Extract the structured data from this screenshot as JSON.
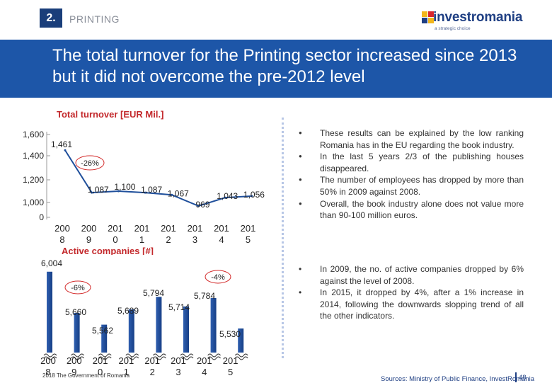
{
  "header": {
    "section_number": "2.",
    "section_name": "PRINTING",
    "logo_name": "investromania",
    "logo_tagline": "a strategic choice"
  },
  "banner": {
    "title": "The total turnover for the Printing sector increased since 2013 but it did not overcome the pre-2012 level"
  },
  "chart_data": [
    {
      "type": "line",
      "title": "Total turnover [EUR Mil.]",
      "categories": [
        "2008",
        "2009",
        "2010",
        "2011",
        "2012",
        "2013",
        "2014",
        "2015"
      ],
      "category_top": [
        "200",
        "200",
        "201",
        "201",
        "201",
        "201",
        "201",
        "201"
      ],
      "category_bottom": [
        "8",
        "9",
        "0",
        "1",
        "2",
        "3",
        "4",
        "5"
      ],
      "values": [
        1461,
        1087,
        1100,
        1087,
        1067,
        969,
        1043,
        1056
      ],
      "value_labels": [
        "1,461",
        "1,087",
        "1,100",
        "1,087",
        "1,067",
        "969",
        "1,043",
        "1,056"
      ],
      "y_ticks": [
        "1,600",
        "1,400",
        "1,200",
        "1,000",
        "0"
      ],
      "ylim": [
        0,
        1600
      ],
      "annotation": "-26%",
      "color": "#1f4f9b"
    },
    {
      "type": "bar",
      "title": "Active companies [#]",
      "categories": [
        "2008",
        "2009",
        "2010",
        "2011",
        "2012",
        "2013",
        "2014",
        "2015"
      ],
      "category_top": [
        "200",
        "200",
        "201",
        "201",
        "201",
        "201",
        "201",
        "201"
      ],
      "category_bottom": [
        "8",
        "9",
        "0",
        "1",
        "2",
        "3",
        "4",
        "5"
      ],
      "values": [
        6004,
        5660,
        5562,
        5689,
        5794,
        5714,
        5784,
        5530
      ],
      "value_labels": [
        "6,004",
        "5,660",
        "5,562",
        "5,689",
        "5,794",
        "5,714",
        "5,784",
        "5,530"
      ],
      "ylim": [
        5400,
        6050
      ],
      "annotations": [
        "-6%",
        "-4%"
      ],
      "color": "#1f4f9b"
    }
  ],
  "bullets_top": [
    "These results can be explained by the low ranking Romania has in the EU regarding the book industry.",
    "In the last 5 years 2/3 of the publishing houses disappeared.",
    "The number of employees has dropped  by more than 50% in 2009 against 2008.",
    "Overall, the book industry alone does not value more than 90-100 million euros."
  ],
  "bullets_bottom": [
    "In 2009, the no. of active companies dropped by 6% against the level of 2008.",
    "In 2015, it dropped by 4%, after a 1% increase in 2014, following the downwards slopping trend of all the other indicators."
  ],
  "bullet_glyph_top": "●",
  "bullet_glyph_bottom": "•",
  "footer": {
    "left_text": "2018 The Government of Romania",
    "source": "Sources: Ministry of Public Finance, InvestRomania",
    "page": "48"
  }
}
